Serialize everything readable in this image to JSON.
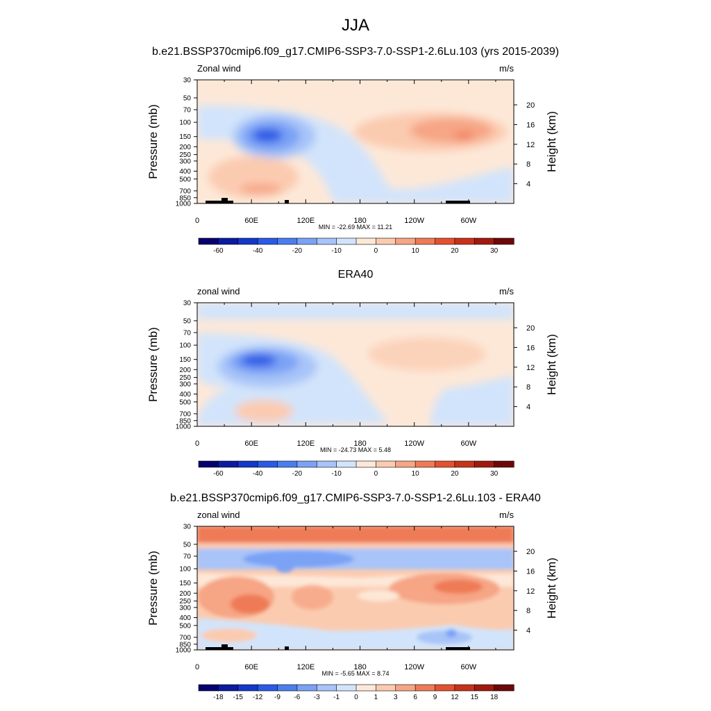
{
  "page": {
    "title": "JJA"
  },
  "panels": [
    {
      "subtitle": "b.e21.BSSP370cmip6.f09_g17.CMIP6-SSP3-7.0-SSP1-2.6Lu.103 (yrs 2015-2039)",
      "left_label": "Zonal wind",
      "right_label": "m/s",
      "stats": "MIN = -22.69  MAX =  11.21"
    },
    {
      "subtitle": "ERA40",
      "left_label": "zonal wind",
      "right_label": "m/s",
      "stats": "MIN = -24.73  MAX =   5.48"
    },
    {
      "subtitle": "b.e21.BSSP370cmip6.f09_g17.CMIP6-SSP3-7.0-SSP1-2.6Lu.103 - ERA40",
      "left_label": "zonal wind",
      "right_label": "m/s",
      "stats": "MIN =  -5.65  MAX =   8.74"
    }
  ],
  "colors": {
    "palette": [
      "#08006e",
      "#0c1ba0",
      "#1438c8",
      "#2a5ae6",
      "#4c7df0",
      "#7aa2f5",
      "#a8c4f8",
      "#d2e4fb",
      "#fde8d8",
      "#fbcbb0",
      "#f6a585",
      "#ef7a57",
      "#e3522e",
      "#c8321a",
      "#a11a10",
      "#6e0808"
    ]
  },
  "chart_data": [
    {
      "type": "heatmap",
      "title": "b.e21.BSSP370cmip6.f09_g17.CMIP6-SSP3-7.0-SSP1-2.6Lu.103 (yrs 2015-2039)",
      "variable": "Zonal wind",
      "units": "m/s",
      "xlabel": "",
      "ylabel": "Pressure (mb)",
      "ylabel_right": "Height (km)",
      "x_ticks": [
        "0",
        "60E",
        "120E",
        "180",
        "120W",
        "60W"
      ],
      "y_ticks": [
        "30",
        "50",
        "70",
        "100",
        "150",
        "200",
        "250",
        "300",
        "400",
        "500",
        "700",
        "850",
        "1000"
      ],
      "y_right_ticks": [
        "20",
        "16",
        "12",
        "8",
        "4"
      ],
      "min": -22.69,
      "max": 11.21,
      "colorbar_labels": [
        "-60",
        "-40",
        "-20",
        "-10",
        "0",
        "10",
        "20",
        "30"
      ],
      "features": [
        {
          "lon": 85,
          "p": 150,
          "value": -22.69
        },
        {
          "lon": 300,
          "p": 150,
          "value": 11.21
        },
        {
          "lon": 85,
          "p": 700,
          "value": 8
        },
        {
          "lon": 200,
          "p": 400,
          "value": -3
        }
      ]
    },
    {
      "type": "heatmap",
      "title": "ERA40",
      "variable": "zonal wind",
      "units": "m/s",
      "xlabel": "",
      "ylabel": "Pressure (mb)",
      "ylabel_right": "Height (km)",
      "x_ticks": [
        "0",
        "60E",
        "120E",
        "180",
        "120W",
        "60W"
      ],
      "y_ticks": [
        "30",
        "50",
        "70",
        "100",
        "150",
        "200",
        "250",
        "300",
        "400",
        "500",
        "700",
        "850",
        "1000"
      ],
      "y_right_ticks": [
        "20",
        "16",
        "12",
        "8",
        "4"
      ],
      "min": -24.73,
      "max": 5.48,
      "colorbar_labels": [
        "-60",
        "-40",
        "-20",
        "-10",
        "0",
        "10",
        "20",
        "30"
      ],
      "features": [
        {
          "lon": 85,
          "p": 150,
          "value": -24.73
        },
        {
          "lon": 240,
          "p": 120,
          "value": 5.48
        },
        {
          "lon": 15,
          "p": 30,
          "value": -5
        }
      ]
    },
    {
      "type": "heatmap",
      "title": "b.e21.BSSP370cmip6.f09_g17.CMIP6-SSP3-7.0-SSP1-2.6Lu.103 - ERA40",
      "variable": "zonal wind",
      "units": "m/s",
      "xlabel": "",
      "ylabel": "Pressure (mb)",
      "ylabel_right": "Height (km)",
      "x_ticks": [
        "0",
        "60E",
        "120E",
        "180",
        "120W",
        "60W"
      ],
      "y_ticks": [
        "30",
        "50",
        "70",
        "100",
        "150",
        "200",
        "250",
        "300",
        "400",
        "500",
        "700",
        "850",
        "1000"
      ],
      "y_right_ticks": [
        "20",
        "16",
        "12",
        "8",
        "4"
      ],
      "min": -5.65,
      "max": 8.74,
      "colorbar_labels": [
        "-18",
        "-15",
        "-12",
        "-9",
        "-6",
        "-3",
        "-1",
        "0",
        "1",
        "3",
        "6",
        "9",
        "12",
        "15",
        "18"
      ],
      "features": [
        {
          "lon": 70,
          "p": 250,
          "value": 8.74
        },
        {
          "lon": 95,
          "p": 70,
          "value": -5.65
        },
        {
          "lon": 300,
          "p": 160,
          "value": 6
        },
        {
          "lon": 280,
          "p": 700,
          "value": -4
        }
      ]
    }
  ]
}
